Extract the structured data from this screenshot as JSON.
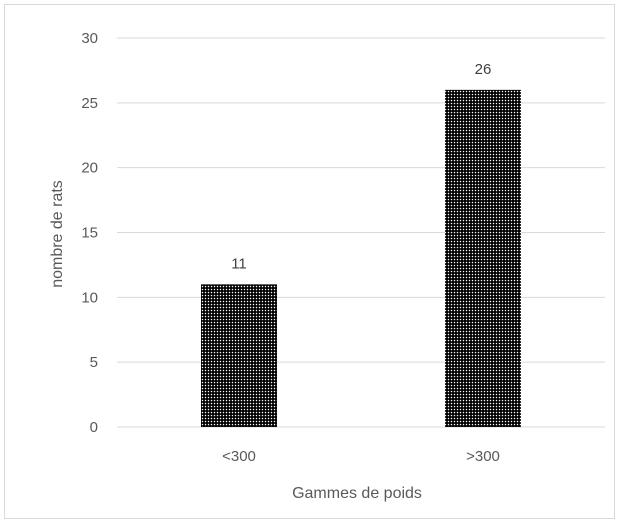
{
  "chart_data": {
    "type": "bar",
    "categories": [
      "<300",
      ">300"
    ],
    "values": [
      11,
      26
    ],
    "data_labels": [
      "11",
      "26"
    ],
    "title": "",
    "xlabel": "Gammes de poids",
    "ylabel": "nombre de rats",
    "ylim": [
      0,
      30
    ],
    "yticks": [
      "0",
      "5",
      "10",
      "15",
      "20",
      "25",
      "30"
    ],
    "grid": true,
    "legend": "none",
    "bar_pattern": "dense black dot pattern"
  },
  "colors": {
    "bar_fill": "#000000",
    "bar_dots": "#ffffff",
    "grid": "#d9d9d9",
    "text": "#595959",
    "frame": "#d9d9d9"
  }
}
